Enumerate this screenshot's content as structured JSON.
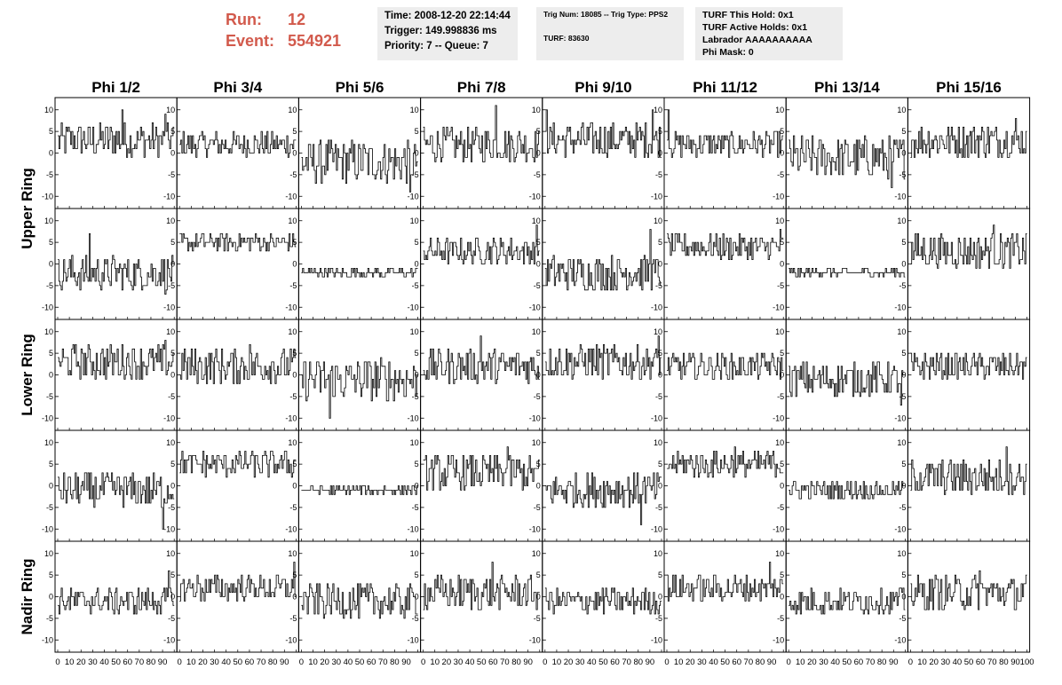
{
  "run_label": "Run:",
  "run_value": "12",
  "event_label": "Event:",
  "event_value": "554921",
  "info": {
    "time": "Time: 2008-12-20 22:14:44",
    "trigger": "Trigger: 149.998836 ms",
    "priority": "Priority: 7 -- Queue: 7",
    "trig_num": "Trig Num: 18085 -- Trig Type: PPS2",
    "turf": "TURF: 83630",
    "turf_hold": "TURF This Hold: 0x1",
    "turf_active": "TURF Active Holds: 0x1",
    "labrador": "Labrador AAAAAAAAAA",
    "phi_mask": "Phi Mask: 0"
  },
  "chart_data": {
    "type": "line",
    "columns": [
      "Phi 1/2",
      "Phi 3/4",
      "Phi 5/6",
      "Phi 7/8",
      "Phi 9/10",
      "Phi 11/12",
      "Phi 13/14",
      "Phi 15/16"
    ],
    "row_labels": [
      "Upper Ring",
      "Lower Ring",
      "Nadir Ring"
    ],
    "xlim": [
      0,
      100
    ],
    "ylim": [
      -12,
      12
    ],
    "x_ticks": [
      0,
      10,
      20,
      30,
      40,
      50,
      60,
      70,
      80,
      90,
      100
    ],
    "y_ticks": [
      10,
      5,
      0,
      -5,
      -10
    ],
    "panels_baseline": [
      [
        3,
        2,
        -2,
        2,
        3,
        2,
        -1,
        3
      ],
      [
        -2,
        5,
        -2,
        3,
        -2,
        4,
        -2,
        3
      ],
      [
        3,
        2,
        -1,
        2,
        3,
        2,
        -1,
        2
      ],
      [
        -1,
        5,
        -1,
        3,
        -1,
        5,
        -1,
        2
      ],
      [
        -1,
        2,
        -1,
        1,
        -1,
        2,
        -1,
        1
      ]
    ],
    "panels_amplitude": [
      [
        4,
        3,
        5,
        4,
        4,
        3,
        5,
        4
      ],
      [
        4,
        2,
        1,
        3,
        4,
        3,
        1,
        4
      ],
      [
        4,
        4,
        5,
        4,
        4,
        3,
        4,
        3
      ],
      [
        4,
        3,
        1,
        4,
        4,
        3,
        2,
        4
      ],
      [
        3,
        3,
        4,
        4,
        3,
        3,
        3,
        4
      ]
    ],
    "spikes": [
      [
        [
          55,
          10
        ],
        [
          92,
          9
        ]
      ],
      [],
      [
        [
          93,
          -9
        ]
      ],
      [
        [
          62,
          11
        ]
      ],
      [
        [
          1,
          10
        ],
        [
          92,
          10
        ]
      ],
      [
        [
          1,
          10
        ]
      ],
      [
        [
          88,
          -8
        ]
      ],
      [
        [
          90,
          8
        ]
      ],
      [
        [
          27,
          7
        ],
        [
          92,
          -7
        ]
      ],
      [],
      [],
      [
        [
          97,
          9
        ]
      ],
      [
        [
          90,
          8
        ]
      ],
      [
        [
          97,
          8
        ]
      ],
      [],
      [
        [
          71,
          9
        ]
      ],
      [
        [
          92,
          8
        ]
      ],
      [
        [
          60,
          7
        ]
      ],
      [
        [
          24,
          -10
        ]
      ],
      [
        [
          49,
          9
        ]
      ],
      [
        [
          97,
          9
        ]
      ],
      [],
      [
        [
          96,
          -7
        ]
      ],
      [],
      [
        [
          90,
          -10
        ]
      ],
      [],
      [],
      [
        [
          72,
          9
        ]
      ],
      [
        [
          82,
          -9
        ]
      ],
      [
        [
          58,
          9
        ]
      ],
      [],
      [
        [
          82,
          9
        ]
      ],
      [
        [
          95,
          6
        ]
      ],
      [
        [
          98,
          8
        ]
      ],
      [],
      [
        [
          59,
          8
        ]
      ],
      [],
      [
        [
          88,
          8
        ]
      ],
      [],
      [
        [
          59,
          6
        ]
      ]
    ]
  }
}
